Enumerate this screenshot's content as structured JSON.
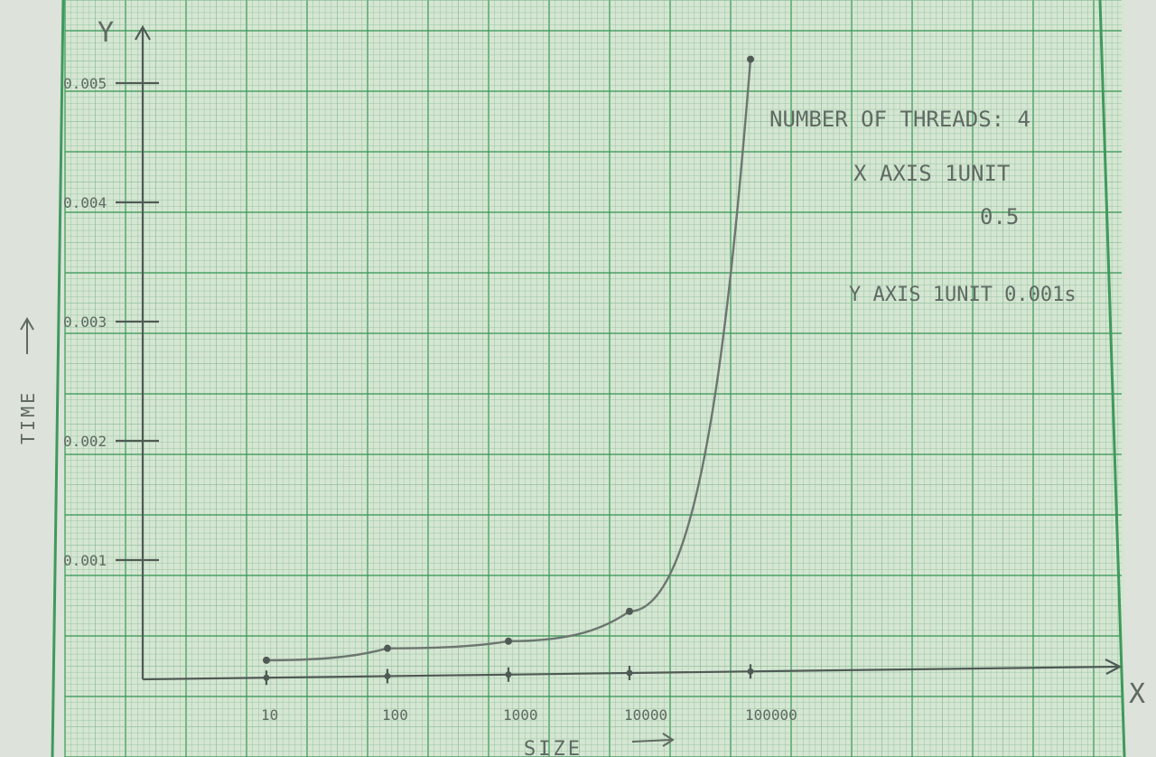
{
  "chart_data": {
    "type": "line",
    "xlabel": "SIZE",
    "ylabel": "TIME",
    "x_axis_letter": "X",
    "y_axis_letter": "Y",
    "x_scale": "log",
    "x_ticks": [
      {
        "label": "10",
        "value": 10
      },
      {
        "label": "100",
        "value": 100
      },
      {
        "label": "1000",
        "value": 1000
      },
      {
        "label": "10000",
        "value": 10000
      },
      {
        "label": "100000",
        "value": 100000
      }
    ],
    "y_ticks": [
      {
        "label": "0.001",
        "value": 0.001
      },
      {
        "label": "0.002",
        "value": 0.002
      },
      {
        "label": "0.003",
        "value": 0.003
      },
      {
        "label": "0.004",
        "value": 0.004
      },
      {
        "label": "0.005",
        "value": 0.005
      }
    ],
    "ylim": [
      0,
      0.0055
    ],
    "series": [
      {
        "x": [
          10,
          100,
          1000,
          10000,
          100000
        ],
        "y": [
          0.00016,
          0.00026,
          0.00032,
          0.00057,
          0.0052
        ],
        "color": "#6c7670"
      }
    ],
    "notes": [
      "NUMBER OF THREADS: 4",
      "X AXIS 1UNIT",
      "0.5",
      "Y AXIS 1UNIT 0.001s"
    ]
  },
  "colors": {
    "paper": "#d5e6d2",
    "grid_fine": "#7fb58e",
    "grid_major": "#3d9a5a",
    "pencil": "#5f6a63"
  }
}
